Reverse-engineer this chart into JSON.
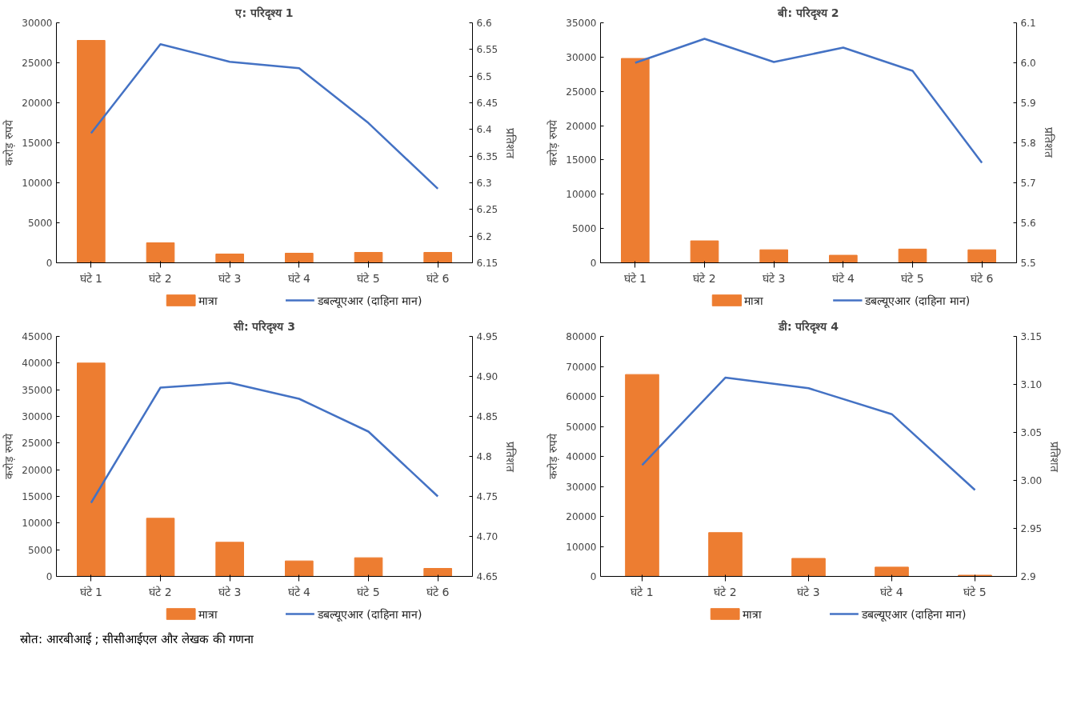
{
  "chart_data": [
    {
      "type": "bar",
      "title": "ए: परिदृश्य 1",
      "ylabel": "करोड़ रुपये",
      "y2label": "प्रतिशत",
      "categories": [
        "घंटे 1",
        "घंटे 2",
        "घंटे 3",
        "घंटे 4",
        "घंटे 5",
        "घंटे 6"
      ],
      "series": [
        {
          "name": "मात्रा",
          "color": "#ed7d31",
          "values": [
            27800,
            2500,
            1100,
            1200,
            1300,
            1300
          ]
        },
        {
          "name": "डबल्यूएआर (दाहिना मान)",
          "type": "line",
          "axis": "y2",
          "color": "#4472c4",
          "values": [
            6.393,
            6.56,
            6.527,
            6.515,
            6.412,
            6.289
          ]
        }
      ],
      "ylim": [
        0,
        30000
      ],
      "yticks": [
        0,
        5000,
        10000,
        15000,
        20000,
        25000,
        30000
      ],
      "y2lim": [
        6.15,
        6.6
      ],
      "y2ticks": [
        6.15,
        6.2,
        6.25,
        6.3,
        6.35,
        6.4,
        6.45,
        6.5,
        6.55,
        6.6
      ],
      "grid": false,
      "legend": "bottom"
    },
    {
      "type": "bar",
      "title": "बी: परिदृश्य 2",
      "ylabel": "करोड़ रुपये",
      "y2label": "प्रतिशत",
      "categories": [
        "घंटे 1",
        "घंटे 2",
        "घंटे 3",
        "घंटे 4",
        "घंटे 5",
        "घंटे 6"
      ],
      "series": [
        {
          "name": "मात्रा",
          "color": "#ed7d31",
          "values": [
            29800,
            3200,
            1900,
            1100,
            2000,
            1900
          ]
        },
        {
          "name": "डबल्यूएआर (दाहिना मान)",
          "type": "line",
          "axis": "y2",
          "color": "#4472c4",
          "values": [
            6.0,
            6.06,
            6.002,
            6.038,
            5.98,
            5.75
          ]
        }
      ],
      "ylim": [
        0,
        35000
      ],
      "yticks": [
        0,
        5000,
        10000,
        15000,
        20000,
        25000,
        30000,
        35000
      ],
      "y2lim": [
        5.5,
        6.1
      ],
      "y2ticks": [
        5.5,
        5.6,
        5.7,
        5.8,
        5.9,
        {
          "value": 6.0,
          "label": "6.0"
        },
        6.1
      ],
      "grid": false,
      "legend": "bottom"
    },
    {
      "type": "bar",
      "title": "सी: परिदृश्य 3",
      "ylabel": "करोड़ रुपये",
      "y2label": "प्रतिशत",
      "categories": [
        "घंटे 1",
        "घंटे 2",
        "घंटे 3",
        "घंटे 4",
        "घंटे 5",
        "घंटे 6"
      ],
      "series": [
        {
          "name": "मात्रा",
          "color": "#ed7d31",
          "values": [
            40000,
            10900,
            6400,
            2900,
            3500,
            1500
          ]
        },
        {
          "name": "डबल्यूएआर (दाहिना मान)",
          "type": "line",
          "axis": "y2",
          "color": "#4472c4",
          "values": [
            4.742,
            4.886,
            4.892,
            4.872,
            4.831,
            4.75
          ]
        }
      ],
      "ylim": [
        0,
        45000
      ],
      "yticks": [
        0,
        5000,
        10000,
        15000,
        20000,
        25000,
        30000,
        35000,
        40000,
        45000
      ],
      "y2lim": [
        4.65,
        4.95
      ],
      "y2ticks": [
        4.65,
        {
          "value": 4.7,
          "label": "4.70"
        },
        4.75,
        4.8,
        4.85,
        {
          "value": 4.9,
          "label": "4.90"
        },
        4.95
      ],
      "grid": false,
      "legend": "bottom"
    },
    {
      "type": "bar",
      "title": "डी: परिदृश्य 4",
      "ylabel": "करोड़ रुपये",
      "y2label": "प्रतिशत",
      "categories": [
        "घंटे 1",
        "घंटे 2",
        "घंटे 3",
        "घंटे 4",
        "घंटे 5"
      ],
      "series": [
        {
          "name": "मात्रा",
          "color": "#ed7d31",
          "values": [
            67300,
            14600,
            6000,
            3100,
            400
          ]
        },
        {
          "name": "डबल्यूएआर (दाहिना मान)",
          "type": "line",
          "axis": "y2",
          "color": "#4472c4",
          "values": [
            3.016,
            3.107,
            3.096,
            3.069,
            2.99
          ]
        }
      ],
      "ylim": [
        0,
        80000
      ],
      "yticks": [
        0,
        10000,
        20000,
        30000,
        40000,
        50000,
        60000,
        70000,
        80000
      ],
      "y2lim": [
        2.9,
        3.15
      ],
      "y2ticks": [
        2.9,
        2.95,
        {
          "value": 3.0,
          "label": "3.00"
        },
        3.05,
        {
          "value": 3.1,
          "label": "3.10"
        },
        3.15
      ],
      "grid": false,
      "legend": "bottom",
      "annotations": [
        "स्रोत: आरबीआई ; सीसीआईएल और लेखक की गणना"
      ]
    }
  ]
}
